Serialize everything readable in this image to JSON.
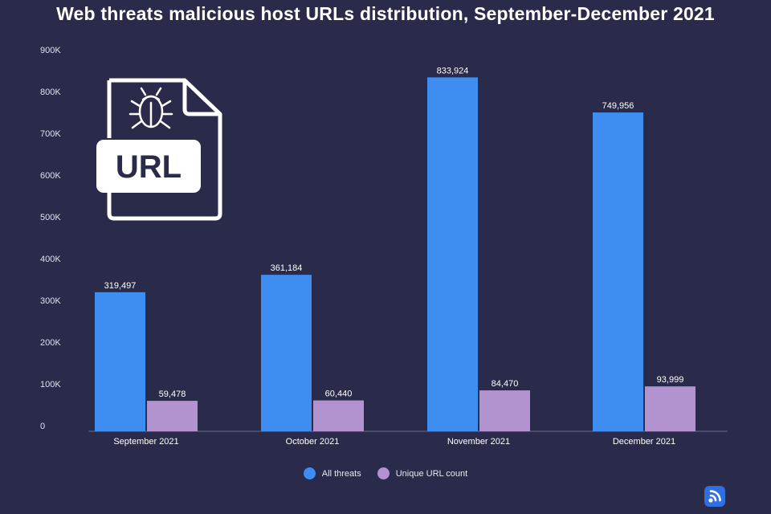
{
  "chart_data": {
    "type": "bar",
    "title": "Web threats malicious host URLs distribution, September-December 2021",
    "categories": [
      "September 2021",
      "October 2021",
      "November 2021",
      "December 2021"
    ],
    "series": [
      {
        "name": "All threats",
        "color": "#3d8ef0",
        "values": [
          319497,
          361184,
          833924,
          749956
        ],
        "labels": [
          "319,497",
          "361,184",
          "833,924",
          "749,956"
        ]
      },
      {
        "name": "Unique URL count",
        "color": "#b292cf",
        "values": [
          59478,
          60440,
          84470,
          93999
        ],
        "labels": [
          "59,478",
          "60,440",
          "84,470",
          "93,999"
        ]
      }
    ],
    "ylim": [
      0,
      900000
    ],
    "yticks": [
      0,
      100000,
      200000,
      300000,
      400000,
      500000,
      600000,
      700000,
      800000,
      900000
    ],
    "ytick_labels": [
      "0",
      "100K",
      "200K",
      "300K",
      "400K",
      "500K",
      "600K",
      "700K",
      "800K",
      "900K"
    ],
    "grid": false,
    "legend": "bottom-center"
  },
  "decorations": {
    "url_badge_text": "URL",
    "url_icon": "url-file-bug-icon",
    "brand_icon": "signal-logo-icon"
  }
}
